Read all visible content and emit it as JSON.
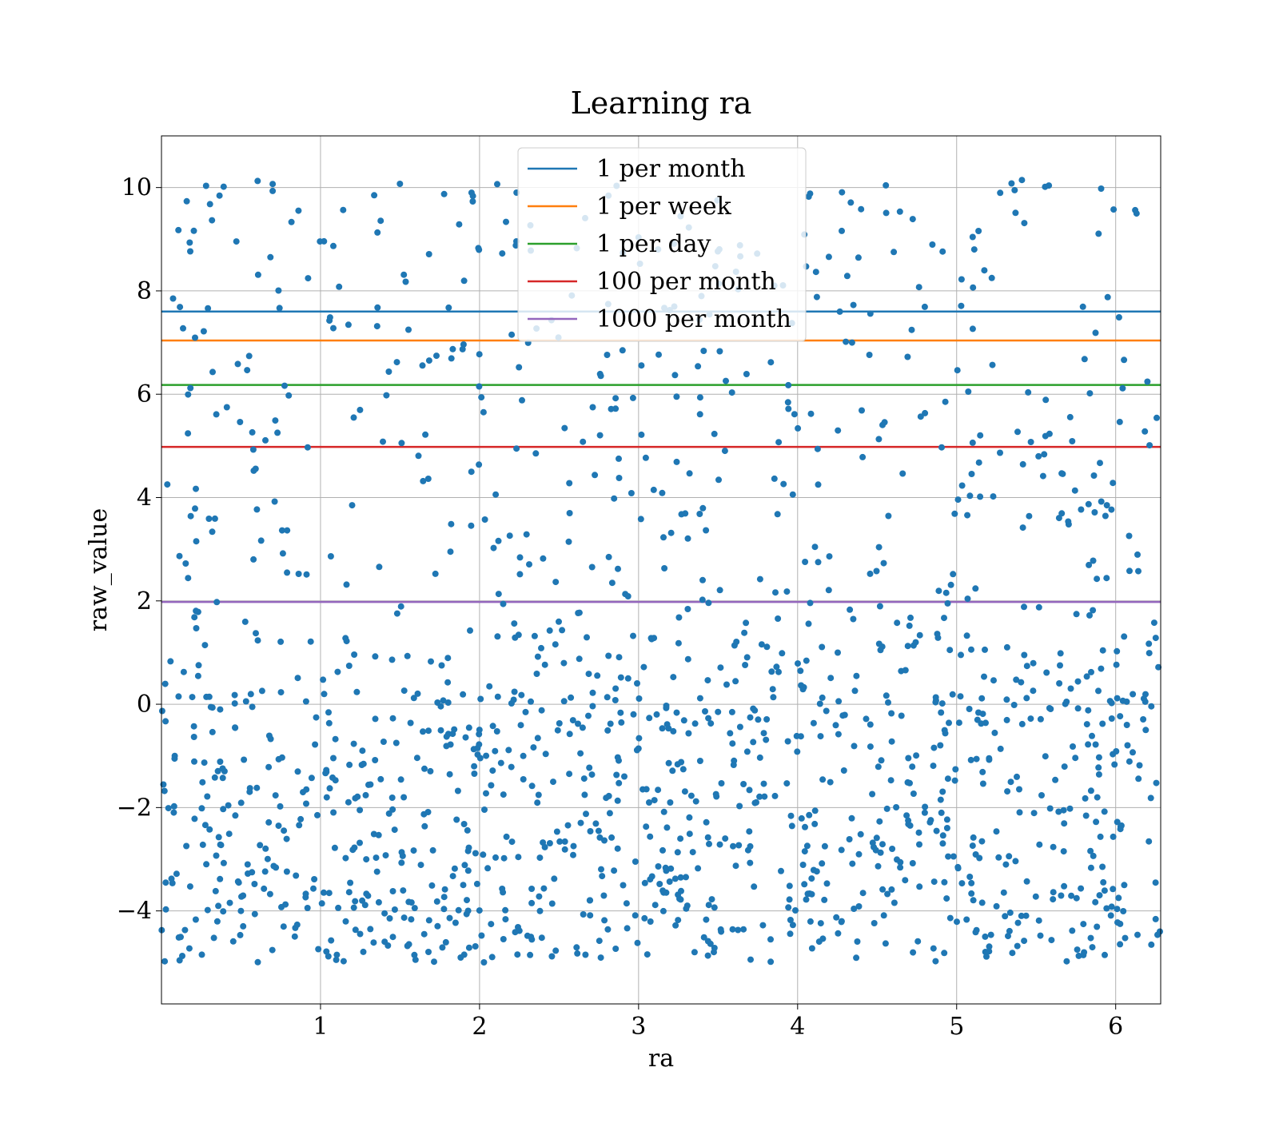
{
  "chart_data": {
    "type": "scatter",
    "title": "Learning ra",
    "xlabel": "ra",
    "ylabel": "raw_value",
    "xlim": [
      0.0,
      6.283
    ],
    "ylim": [
      -5.8,
      11.0
    ],
    "xticks": [
      1,
      2,
      3,
      4,
      5,
      6
    ],
    "xtick_labels": [
      "1",
      "2",
      "3",
      "4",
      "5",
      "6"
    ],
    "yticks": [
      -4,
      -2,
      0,
      2,
      4,
      6,
      8,
      10
    ],
    "ytick_labels": [
      "−4",
      "−2",
      "0",
      "2",
      "4",
      "6",
      "8",
      "10"
    ],
    "grid": true,
    "legend_position": "top-center",
    "scatter_series": {
      "color": "#1f77b4",
      "point_count": 1500,
      "x_range": [
        0.0,
        6.283
      ],
      "y_range": [
        -5.0,
        10.2
      ],
      "distribution": "dense band between -5 and 0, sparse points between 0 and 10.2"
    },
    "lines": [
      {
        "name": "1 per month",
        "y": 7.6,
        "color": "#1f77b4"
      },
      {
        "name": "1 per week",
        "y": 7.04,
        "color": "#ff7f0e"
      },
      {
        "name": "1 per day",
        "y": 6.18,
        "color": "#2ca02c"
      },
      {
        "name": "100 per month",
        "y": 4.98,
        "color": "#d62728"
      },
      {
        "name": "1000 per month",
        "y": 1.98,
        "color": "#9467bd"
      }
    ]
  }
}
